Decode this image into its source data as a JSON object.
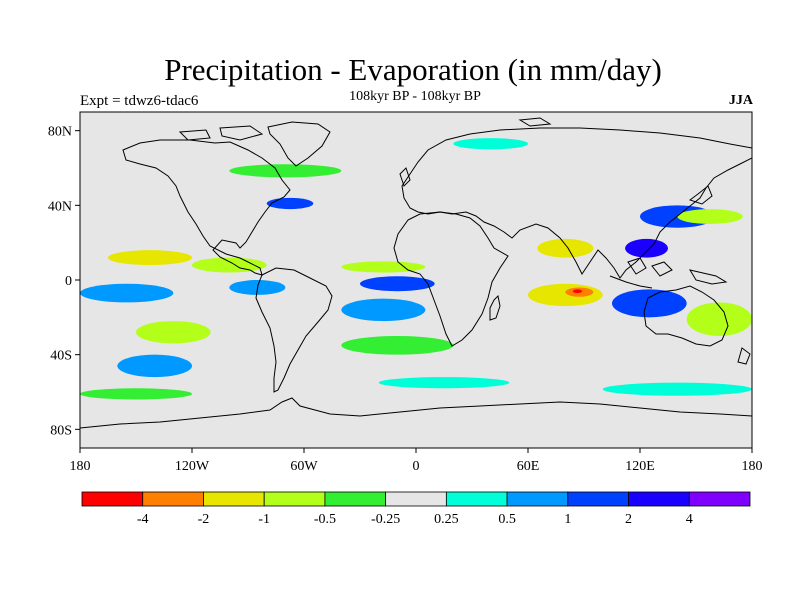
{
  "title": "Precipitation - Evaporation (in mm/day)",
  "subtitle": "108kyr BP - 108kyr BP",
  "experiment": "Expt = tdwz6-tdac6",
  "season": "JJA",
  "map": {
    "projection": "cylindrical equidistant",
    "lon_range": [
      -180,
      180
    ],
    "lat_range": [
      -90,
      90
    ],
    "background_color": "#e6e6e6",
    "coastline_color": "#000000"
  },
  "axes": {
    "lat_ticks": [
      {
        "value": 80,
        "label": "80N"
      },
      {
        "value": 40,
        "label": "40N"
      },
      {
        "value": 0,
        "label": "0"
      },
      {
        "value": -40,
        "label": "40S"
      },
      {
        "value": -80,
        "label": "80S"
      }
    ],
    "lon_ticks": [
      {
        "value": -180,
        "label": "180"
      },
      {
        "value": -120,
        "label": "120W"
      },
      {
        "value": -60,
        "label": "60W"
      },
      {
        "value": 0,
        "label": "0"
      },
      {
        "value": 60,
        "label": "60E"
      },
      {
        "value": 120,
        "label": "120E"
      },
      {
        "value": 180,
        "label": "180"
      }
    ]
  },
  "colorbar": {
    "colors": [
      "#ff0000",
      "#ff7f00",
      "#e6e600",
      "#b3ff1a",
      "#33ee33",
      "#e6e6e6",
      "#00ffd9",
      "#0099ff",
      "#0040ff",
      "#1a00ff",
      "#7f00ff"
    ],
    "labels": [
      "-4",
      "-2",
      "-1",
      "-0.5",
      "-0.25",
      "0.25",
      "0.5",
      "1",
      "2",
      "4"
    ]
  },
  "field_regions": [
    {
      "level": "0.5",
      "lon": [
        -180,
        -130
      ],
      "lat": [
        -2,
        -12
      ]
    },
    {
      "level": "0.5",
      "lon": [
        -100,
        -70
      ],
      "lat": [
        0,
        -8
      ]
    },
    {
      "level": "1",
      "lon": [
        -30,
        10
      ],
      "lat": [
        2,
        -6
      ]
    },
    {
      "level": "0.5",
      "lon": [
        -40,
        5
      ],
      "lat": [
        -10,
        -22
      ]
    },
    {
      "level": "1",
      "lon": [
        -80,
        -55
      ],
      "lat": [
        38,
        44
      ]
    },
    {
      "level": "0.5",
      "lon": [
        -160,
        -120
      ],
      "lat": [
        -40,
        -52
      ]
    },
    {
      "level": "1",
      "lon": [
        120,
        160
      ],
      "lat": [
        28,
        40
      ]
    },
    {
      "level": "2",
      "lon": [
        112,
        135
      ],
      "lat": [
        12,
        22
      ]
    },
    {
      "level": "1",
      "lon": [
        105,
        145
      ],
      "lat": [
        -5,
        -20
      ]
    },
    {
      "level": "-1",
      "lon": [
        -165,
        -120
      ],
      "lat": [
        8,
        16
      ]
    },
    {
      "level": "-0.5",
      "lon": [
        -150,
        -110
      ],
      "lat": [
        -22,
        -34
      ]
    },
    {
      "level": "-0.5",
      "lon": [
        -120,
        -80
      ],
      "lat": [
        4,
        12
      ]
    },
    {
      "level": "-0.5",
      "lon": [
        -40,
        5
      ],
      "lat": [
        10,
        4
      ]
    },
    {
      "level": "-1",
      "lon": [
        60,
        100
      ],
      "lat": [
        -2,
        -14
      ]
    },
    {
      "level": "-2",
      "lon": [
        80,
        95
      ],
      "lat": [
        -4,
        -9
      ]
    },
    {
      "level": "-4",
      "lon": [
        84,
        89
      ],
      "lat": [
        -5,
        -7
      ]
    },
    {
      "level": "-1",
      "lon": [
        65,
        95
      ],
      "lat": [
        12,
        22
      ]
    },
    {
      "level": "-0.5",
      "lon": [
        145,
        180
      ],
      "lat": [
        -12,
        -30
      ]
    },
    {
      "level": "-0.5",
      "lon": [
        140,
        175
      ],
      "lat": [
        30,
        38
      ]
    },
    {
      "level": "-0.25",
      "lon": [
        -100,
        -40
      ],
      "lat": [
        55,
        62
      ]
    },
    {
      "level": "-0.25",
      "lon": [
        -40,
        20
      ],
      "lat": [
        -30,
        -40
      ]
    },
    {
      "level": "0.25",
      "lon": [
        -20,
        50
      ],
      "lat": [
        -52,
        -58
      ]
    },
    {
      "level": "0.25",
      "lon": [
        20,
        60
      ],
      "lat": [
        70,
        76
      ]
    },
    {
      "level": "-0.25",
      "lon": [
        -180,
        -120
      ],
      "lat": [
        -58,
        -64
      ]
    },
    {
      "level": "0.25",
      "lon": [
        100,
        180
      ],
      "lat": [
        -55,
        -62
      ]
    }
  ]
}
